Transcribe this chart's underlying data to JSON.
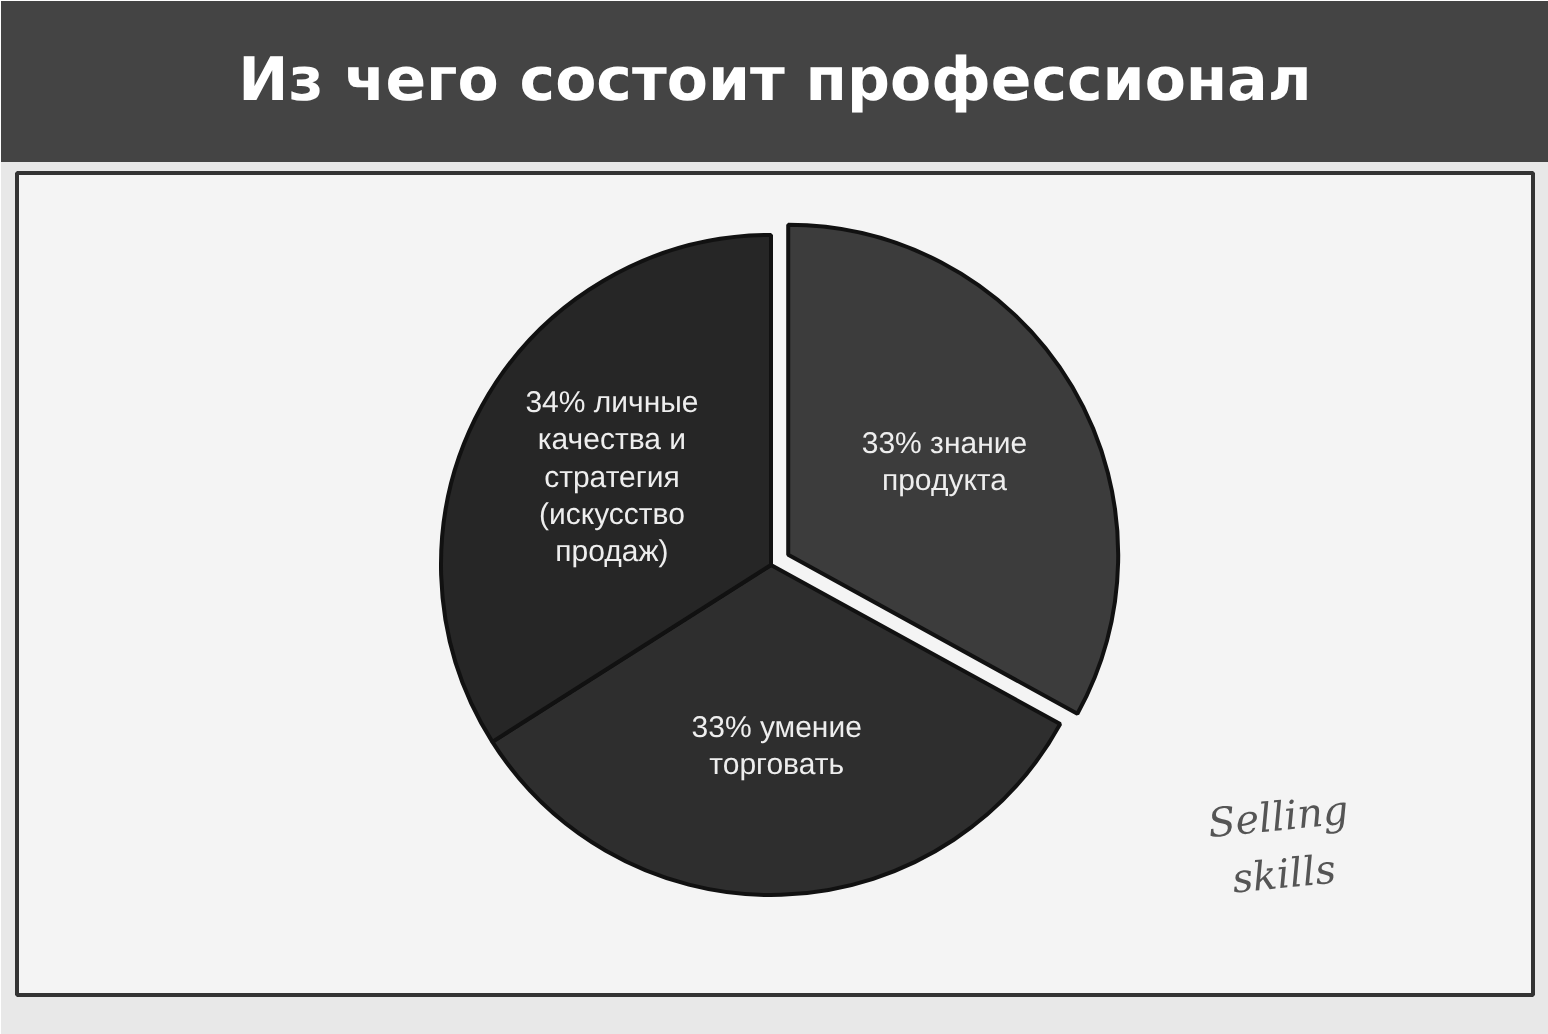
{
  "chart_data": {
    "type": "pie",
    "title": "Из чего состоит профессионал",
    "categories": [
      "33% знание\nпродукта",
      "33% умение\nторговать",
      "34% личные\nкачества и\nстратегия\n(искусство\nпродаж)"
    ],
    "values": [
      33,
      33,
      34
    ],
    "colors": [
      "#3c3c3c",
      "#2e2e2e",
      "#262626"
    ],
    "annotations": [
      "Selling\nskills"
    ]
  }
}
